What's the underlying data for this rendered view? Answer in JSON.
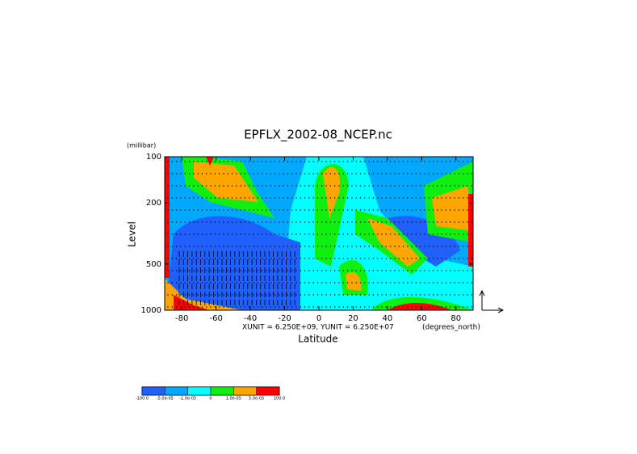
{
  "chart_data": {
    "type": "contour",
    "title": "EPFLX_2002-08_NCEP.nc",
    "x_label": "Latitude",
    "x_unit": "(degrees_north)",
    "y_label": "Level",
    "y_unit": "(millibar)",
    "vector_units": "XUNIT = 6.250E+09, YUNIT = 6.250E+07",
    "xlim": [
      -90,
      90
    ],
    "xticks": [
      -80,
      -60,
      -40,
      -20,
      0,
      20,
      40,
      60,
      80
    ],
    "ylim": [
      1000,
      100
    ],
    "yticks": [
      100,
      200,
      500,
      1000
    ],
    "y_log": true,
    "levels": [
      {
        "value": -100,
        "label": "-100.0"
      },
      {
        "value": -5e-05,
        "label": "-5.0e-05"
      },
      {
        "value": -1e-05,
        "label": "-1.0e-05"
      },
      0,
      {
        "value": 1e-05,
        "label": "1.0e-05"
      },
      {
        "value": 5e-05,
        "label": "5.0e-05"
      },
      {
        "value": 100,
        "label": "100.0"
      }
    ],
    "colors": [
      "#2060ff",
      "#00a8ff",
      "#00ffff",
      "#10f010",
      "#ffa500",
      "#ff0000"
    ]
  }
}
